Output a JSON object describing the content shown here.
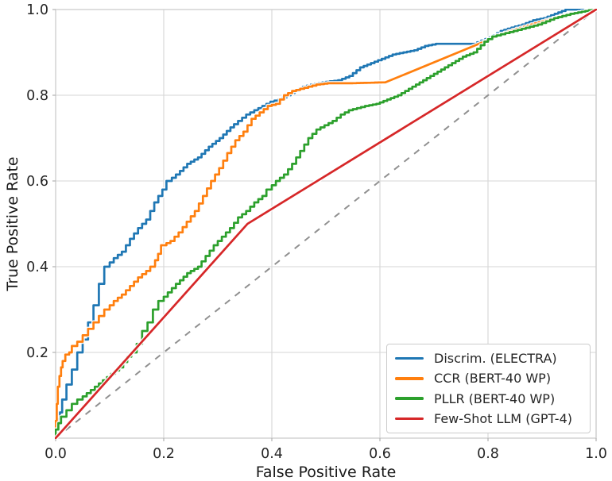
{
  "figure": {
    "background": "#ffffff",
    "grid_color": "#d6d6d6",
    "spine_color": "#cccccc",
    "tick_mark_color": "#b0b0b0",
    "tick_label_color": "#262626"
  },
  "chart_data": {
    "type": "line",
    "title": "",
    "xlabel": "False Positive Rate",
    "ylabel": "True Positive Rate",
    "xlim": [
      0,
      1
    ],
    "ylim": [
      0,
      1
    ],
    "x_ticks": [
      0.0,
      0.2,
      0.4,
      0.6,
      0.8,
      1.0
    ],
    "x_tick_labels": [
      "0.0",
      "0.2",
      "0.4",
      "0.6",
      "0.8",
      "1.0"
    ],
    "y_ticks": [
      0.2,
      0.4,
      0.6,
      0.8,
      1.0
    ],
    "y_tick_labels": [
      "0.2",
      "0.4",
      "0.6",
      "0.8",
      "1.0"
    ],
    "grid": true,
    "legend_position": "lower right",
    "reference_line": {
      "name": "chance-diagonal",
      "color": "#909090",
      "dashed": true,
      "points": [
        [
          0,
          0
        ],
        [
          1,
          1
        ]
      ]
    },
    "series": [
      {
        "name": "Discrim. (ELECTRA)",
        "color": "#1f77b4",
        "style": "step",
        "points": [
          [
            0,
            0
          ],
          [
            0.004,
            0.02
          ],
          [
            0.008,
            0.045
          ],
          [
            0.012,
            0.06
          ],
          [
            0.02,
            0.09
          ],
          [
            0.03,
            0.125
          ],
          [
            0.04,
            0.16
          ],
          [
            0.05,
            0.2
          ],
          [
            0.06,
            0.23
          ],
          [
            0.07,
            0.27
          ],
          [
            0.08,
            0.31
          ],
          [
            0.09,
            0.36
          ],
          [
            0.1,
            0.4
          ],
          [
            0.115,
            0.42
          ],
          [
            0.13,
            0.435
          ],
          [
            0.145,
            0.465
          ],
          [
            0.16,
            0.49
          ],
          [
            0.175,
            0.51
          ],
          [
            0.19,
            0.55
          ],
          [
            0.205,
            0.58
          ],
          [
            0.215,
            0.6
          ],
          [
            0.23,
            0.615
          ],
          [
            0.25,
            0.64
          ],
          [
            0.27,
            0.655
          ],
          [
            0.29,
            0.68
          ],
          [
            0.31,
            0.7
          ],
          [
            0.33,
            0.725
          ],
          [
            0.345,
            0.74
          ],
          [
            0.36,
            0.755
          ],
          [
            0.375,
            0.765
          ],
          [
            0.39,
            0.775
          ],
          [
            0.405,
            0.785
          ],
          [
            0.42,
            0.79
          ],
          [
            0.435,
            0.8
          ],
          [
            0.45,
            0.81
          ],
          [
            0.465,
            0.82
          ],
          [
            0.48,
            0.825
          ],
          [
            0.5,
            0.83
          ],
          [
            0.53,
            0.835
          ],
          [
            0.55,
            0.845
          ],
          [
            0.57,
            0.865
          ],
          [
            0.59,
            0.875
          ],
          [
            0.61,
            0.885
          ],
          [
            0.63,
            0.895
          ],
          [
            0.65,
            0.9
          ],
          [
            0.67,
            0.905
          ],
          [
            0.69,
            0.915
          ],
          [
            0.71,
            0.92
          ],
          [
            0.78,
            0.92
          ],
          [
            0.81,
            0.935
          ],
          [
            0.83,
            0.95
          ],
          [
            0.85,
            0.958
          ],
          [
            0.87,
            0.965
          ],
          [
            0.89,
            0.975
          ],
          [
            0.91,
            0.98
          ],
          [
            0.93,
            0.99
          ],
          [
            0.95,
            1.0
          ],
          [
            1,
            1
          ]
        ]
      },
      {
        "name": "CCR (BERT-40 WP)",
        "color": "#ff7f0e",
        "style": "step",
        "points": [
          [
            0,
            0
          ],
          [
            0.002,
            0.04
          ],
          [
            0.004,
            0.08
          ],
          [
            0.007,
            0.12
          ],
          [
            0.01,
            0.145
          ],
          [
            0.013,
            0.165
          ],
          [
            0.018,
            0.18
          ],
          [
            0.025,
            0.195
          ],
          [
            0.03,
            0.2
          ],
          [
            0.04,
            0.215
          ],
          [
            0.05,
            0.225
          ],
          [
            0.06,
            0.24
          ],
          [
            0.07,
            0.255
          ],
          [
            0.08,
            0.27
          ],
          [
            0.09,
            0.285
          ],
          [
            0.1,
            0.3
          ],
          [
            0.115,
            0.32
          ],
          [
            0.13,
            0.335
          ],
          [
            0.145,
            0.355
          ],
          [
            0.16,
            0.375
          ],
          [
            0.175,
            0.39
          ],
          [
            0.184,
            0.4
          ],
          [
            0.195,
            0.43
          ],
          [
            0.205,
            0.45
          ],
          [
            0.22,
            0.46
          ],
          [
            0.235,
            0.48
          ],
          [
            0.25,
            0.505
          ],
          [
            0.265,
            0.53
          ],
          [
            0.28,
            0.565
          ],
          [
            0.295,
            0.6
          ],
          [
            0.31,
            0.63
          ],
          [
            0.325,
            0.665
          ],
          [
            0.34,
            0.695
          ],
          [
            0.355,
            0.715
          ],
          [
            0.37,
            0.745
          ],
          [
            0.385,
            0.76
          ],
          [
            0.4,
            0.775
          ],
          [
            0.415,
            0.78
          ],
          [
            0.43,
            0.8
          ],
          [
            0.445,
            0.81
          ],
          [
            0.46,
            0.815
          ],
          [
            0.475,
            0.82
          ],
          [
            0.49,
            0.825
          ],
          [
            0.51,
            0.828
          ],
          [
            0.55,
            0.828
          ],
          [
            0.61,
            0.83
          ],
          [
            0.816,
            0.937
          ],
          [
            0.86,
            0.955
          ],
          [
            0.9,
            0.97
          ],
          [
            0.94,
            0.985
          ],
          [
            1,
            1
          ]
        ]
      },
      {
        "name": "PLLR (BERT-40 WP)",
        "color": "#2ca02c",
        "style": "step",
        "points": [
          [
            0,
            0
          ],
          [
            0.005,
            0.02
          ],
          [
            0.01,
            0.035
          ],
          [
            0.02,
            0.05
          ],
          [
            0.03,
            0.065
          ],
          [
            0.04,
            0.08
          ],
          [
            0.05,
            0.09
          ],
          [
            0.065,
            0.105
          ],
          [
            0.08,
            0.12
          ],
          [
            0.095,
            0.135
          ],
          [
            0.11,
            0.15
          ],
          [
            0.125,
            0.165
          ],
          [
            0.14,
            0.19
          ],
          [
            0.15,
            0.2
          ],
          [
            0.16,
            0.22
          ],
          [
            0.17,
            0.25
          ],
          [
            0.18,
            0.27
          ],
          [
            0.19,
            0.3
          ],
          [
            0.2,
            0.32
          ],
          [
            0.215,
            0.34
          ],
          [
            0.23,
            0.36
          ],
          [
            0.25,
            0.385
          ],
          [
            0.27,
            0.4
          ],
          [
            0.285,
            0.425
          ],
          [
            0.3,
            0.45
          ],
          [
            0.315,
            0.47
          ],
          [
            0.33,
            0.49
          ],
          [
            0.345,
            0.515
          ],
          [
            0.36,
            0.53
          ],
          [
            0.375,
            0.55
          ],
          [
            0.39,
            0.565
          ],
          [
            0.4,
            0.58
          ],
          [
            0.415,
            0.6
          ],
          [
            0.43,
            0.615
          ],
          [
            0.445,
            0.64
          ],
          [
            0.46,
            0.67
          ],
          [
            0.475,
            0.7
          ],
          [
            0.49,
            0.72
          ],
          [
            0.505,
            0.73
          ],
          [
            0.52,
            0.74
          ],
          [
            0.535,
            0.755
          ],
          [
            0.55,
            0.765
          ],
          [
            0.565,
            0.77
          ],
          [
            0.58,
            0.775
          ],
          [
            0.6,
            0.78
          ],
          [
            0.62,
            0.79
          ],
          [
            0.64,
            0.8
          ],
          [
            0.66,
            0.815
          ],
          [
            0.68,
            0.83
          ],
          [
            0.7,
            0.845
          ],
          [
            0.72,
            0.86
          ],
          [
            0.74,
            0.875
          ],
          [
            0.76,
            0.89
          ],
          [
            0.78,
            0.9
          ],
          [
            0.8,
            0.925
          ],
          [
            0.816,
            0.937
          ],
          [
            0.84,
            0.945
          ],
          [
            0.87,
            0.955
          ],
          [
            0.9,
            0.965
          ],
          [
            0.93,
            0.98
          ],
          [
            0.96,
            0.99
          ],
          [
            1,
            1
          ]
        ]
      },
      {
        "name": "Few-Shot LLM (GPT-4)",
        "color": "#d62728",
        "style": "line",
        "points": [
          [
            0,
            0
          ],
          [
            0.355,
            0.5
          ],
          [
            1,
            1
          ]
        ]
      }
    ]
  }
}
